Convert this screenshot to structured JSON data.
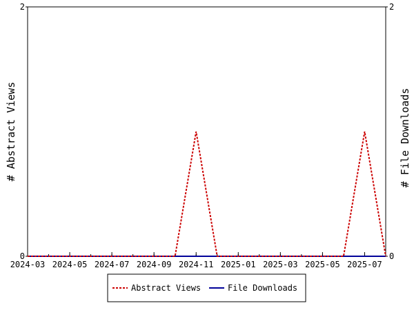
{
  "chart_data": {
    "type": "line",
    "x_tick_labels": [
      "2024-03",
      "2024-05",
      "2024-07",
      "2024-09",
      "2024-11",
      "2025-01",
      "2025-03",
      "2025-05",
      "2025-07"
    ],
    "x_range_months": [
      "2024-03",
      "2025-08"
    ],
    "y_left": {
      "label": "# Abstract Views",
      "ylim": [
        0,
        2
      ],
      "tick_labels": [
        "0",
        "2"
      ]
    },
    "y_right": {
      "label": "# File Downloads",
      "ylim": [
        0,
        2
      ],
      "tick_labels": [
        "0",
        "2"
      ]
    },
    "series": [
      {
        "name": "Abstract Views",
        "axis": "left",
        "color": "#cc0000",
        "style": "dashed",
        "x": [
          "2024-03",
          "2024-04",
          "2024-05",
          "2024-06",
          "2024-07",
          "2024-08",
          "2024-09",
          "2024-10",
          "2024-11",
          "2024-12",
          "2025-01",
          "2025-02",
          "2025-03",
          "2025-04",
          "2025-05",
          "2025-06",
          "2025-07",
          "2025-08"
        ],
        "values": [
          0,
          0,
          0,
          0,
          0,
          0,
          0,
          0,
          1,
          0,
          0,
          0,
          0,
          0,
          0,
          0,
          1,
          0
        ]
      },
      {
        "name": "File Downloads",
        "axis": "right",
        "color": "#000099",
        "style": "solid",
        "x": [
          "2024-03",
          "2024-04",
          "2024-05",
          "2024-06",
          "2024-07",
          "2024-08",
          "2024-09",
          "2024-10",
          "2024-11",
          "2024-12",
          "2025-01",
          "2025-02",
          "2025-03",
          "2025-04",
          "2025-05",
          "2025-06",
          "2025-07",
          "2025-08"
        ],
        "values": [
          0,
          0,
          0,
          0,
          0,
          0,
          0,
          0,
          0,
          0,
          0,
          0,
          0,
          0,
          0,
          0,
          0,
          0
        ]
      }
    ],
    "legend": {
      "placement": "bottom",
      "entries": [
        "Abstract Views",
        "File Downloads"
      ]
    },
    "grid": false
  }
}
